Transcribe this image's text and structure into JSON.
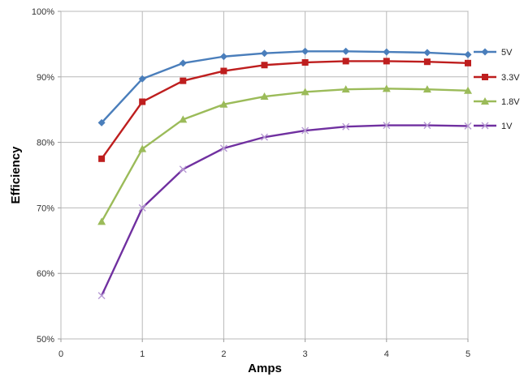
{
  "chart_data": {
    "type": "line",
    "xlabel": "Amps",
    "ylabel": "Efficiency",
    "xlim": [
      0,
      5
    ],
    "ylim": [
      50,
      100
    ],
    "x_ticks": [
      "0",
      "1",
      "2",
      "3",
      "4",
      "5"
    ],
    "y_ticks": [
      "50%",
      "60%",
      "70%",
      "80%",
      "90%",
      "100%"
    ],
    "grid": true,
    "legend_position": "right",
    "x": [
      0.5,
      1.0,
      1.5,
      2.0,
      2.5,
      3.0,
      3.5,
      4.0,
      4.5,
      5.0
    ],
    "series": [
      {
        "name": "5V",
        "color": "#4a7ebb",
        "marker": "diamond",
        "values": [
          83.0,
          89.7,
          92.1,
          93.1,
          93.6,
          93.9,
          93.9,
          93.8,
          93.7,
          93.4
        ]
      },
      {
        "name": "3.3V",
        "color": "#be1e1e",
        "marker": "square",
        "values": [
          77.5,
          86.2,
          89.4,
          90.9,
          91.8,
          92.2,
          92.4,
          92.4,
          92.3,
          92.1
        ]
      },
      {
        "name": "1.8V",
        "color": "#9bbb59",
        "marker": "triangle",
        "values": [
          67.9,
          79.0,
          83.5,
          85.8,
          87.0,
          87.7,
          88.1,
          88.2,
          88.1,
          87.9
        ]
      },
      {
        "name": "1V",
        "color": "#7030a0",
        "marker": "x",
        "values": [
          56.6,
          70.0,
          75.9,
          79.1,
          80.8,
          81.8,
          82.4,
          82.6,
          82.6,
          82.5
        ]
      }
    ]
  }
}
